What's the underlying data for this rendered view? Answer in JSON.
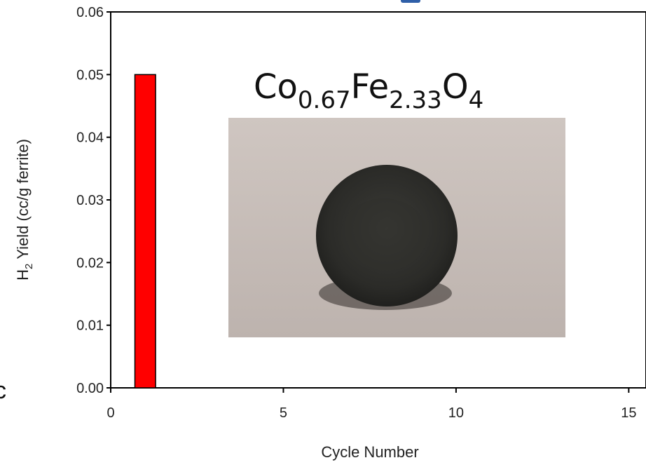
{
  "chart_data": {
    "type": "bar",
    "x": [
      1
    ],
    "values": [
      0.05
    ],
    "xlabel": "Cycle Number",
    "ylabel": "Yield (cc/g ferrite)",
    "ylabel_prefix": "H",
    "ylabel_subscript": "2",
    "xlim": [
      0,
      15.5
    ],
    "ylim": [
      0,
      0.06
    ],
    "xticks": [
      0,
      5,
      10,
      15
    ],
    "yticks": [
      0.0,
      0.01,
      0.02,
      0.03,
      0.04,
      0.05,
      0.06
    ],
    "ytick_labels": [
      "0.00",
      "0.01",
      "0.02",
      "0.03",
      "0.04",
      "0.05",
      "0.06"
    ],
    "xtick_labels": [
      "0",
      "5",
      "10",
      "15"
    ],
    "bar_color": "#ff0000",
    "grid": false
  },
  "annotation": {
    "formula_parts": [
      {
        "text": "Co",
        "sub": false
      },
      {
        "text": "0.67",
        "sub": true
      },
      {
        "text": "Fe",
        "sub": false
      },
      {
        "text": "2.33",
        "sub": true
      },
      {
        "text": "O",
        "sub": false
      },
      {
        "text": "4",
        "sub": true
      }
    ],
    "photo_subject": "ferrite pellet"
  },
  "edge_glyph": "c"
}
